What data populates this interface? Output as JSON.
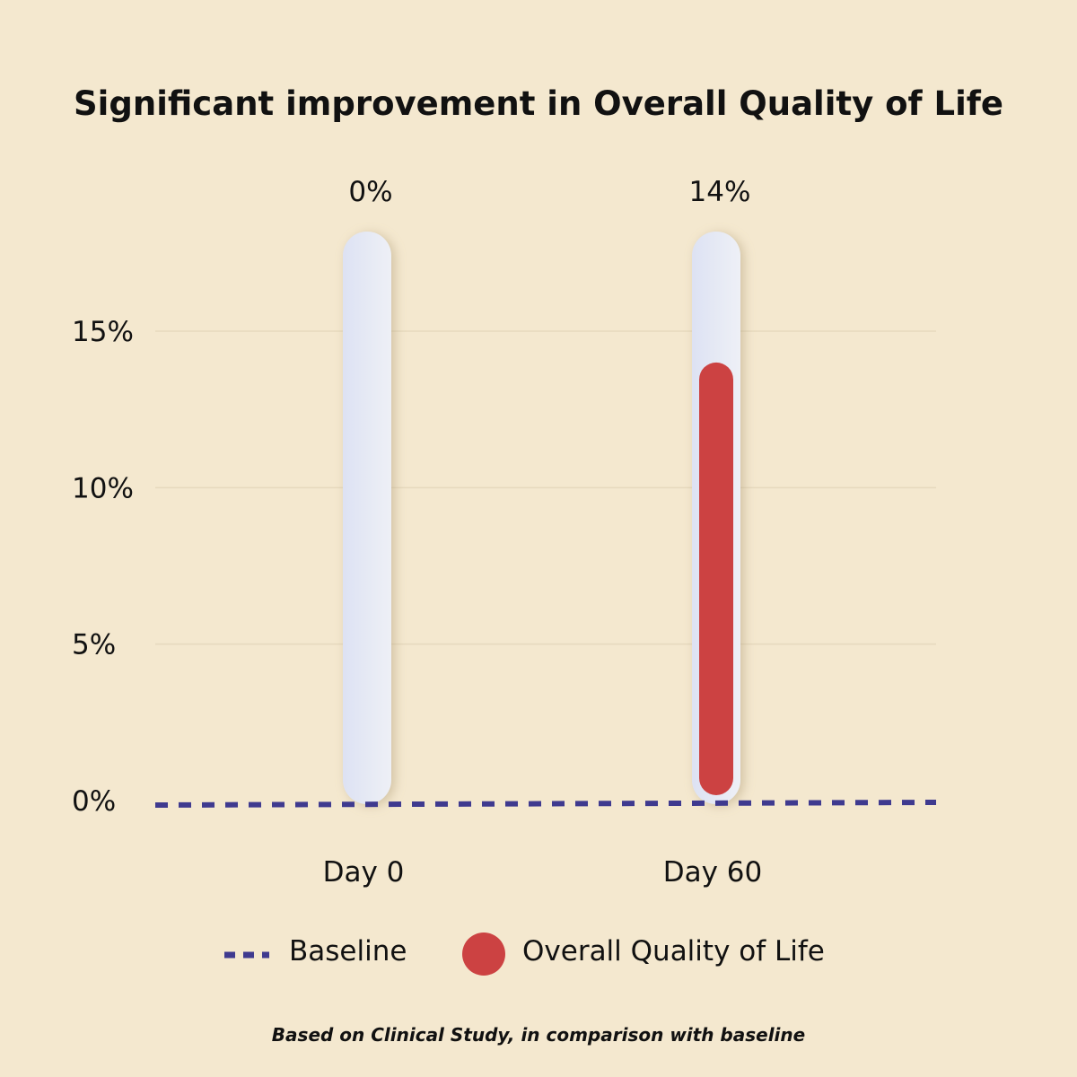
{
  "chart_data": {
    "type": "bar",
    "title": "Significant improvement in Overall Quality of Life",
    "categories": [
      "Day 0",
      "Day 60"
    ],
    "series": [
      {
        "name": "Overall Quality of Life",
        "values": [
          0,
          14
        ],
        "color": "#cc4242"
      }
    ],
    "value_labels": [
      "0%",
      "14%"
    ],
    "baseline": {
      "name": "Baseline",
      "value": 0,
      "color": "#3f3a8f",
      "style": "dashed"
    },
    "yticks": [
      0,
      5,
      10,
      15
    ],
    "ytick_labels": [
      "0%",
      "5%",
      "10%",
      "15%"
    ],
    "ylim": [
      0,
      18
    ],
    "grid": true,
    "track_color": "#e2e6f4",
    "legend_position": "bottom",
    "footnote": "Based on Clinical Study, in comparison with baseline"
  }
}
